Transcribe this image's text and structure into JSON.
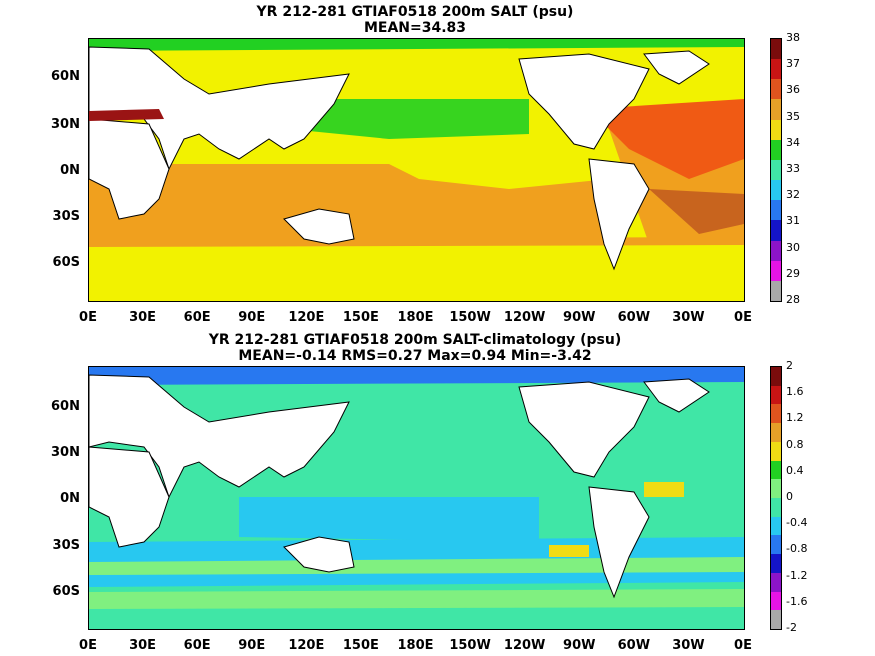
{
  "panels": [
    {
      "title1": "YR 212-281 GTIAF0518 200m SALT (psu)",
      "title2": "MEAN=34.83",
      "colorbar": {
        "labels": [
          "38",
          "37",
          "36",
          "35",
          "34",
          "33",
          "32",
          "31",
          "30",
          "29",
          "28"
        ],
        "colors": [
          "#7a0c0c",
          "#c81414",
          "#e0541e",
          "#e6a028",
          "#f0dc14",
          "#22d022",
          "#40e6a6",
          "#28c8f0",
          "#2878f0",
          "#1414c8",
          "#8c14c8",
          "#e614e6",
          "#a8a8a8"
        ]
      },
      "background": "#f2f200",
      "regions": [
        {
          "name": "atlantic-high-salinity",
          "color": "#f05a14"
        },
        {
          "name": "indian-ocean-band",
          "color": "#f0a01e"
        },
        {
          "name": "pacific-south-band",
          "color": "#f0a01e"
        },
        {
          "name": "north-pacific-fresh",
          "color": "#22d022"
        },
        {
          "name": "arctic-fresh",
          "color": "#22d022"
        },
        {
          "name": "mediterranean",
          "color": "#9a1414"
        }
      ]
    },
    {
      "title1": "YR 212-281 GTIAF0518 200m SALT-climatology (psu)",
      "title2": "MEAN=-0.14   RMS=0.27   Max=0.94   Min=-3.42",
      "colorbar": {
        "labels": [
          "2",
          "1.6",
          "1.2",
          "0.8",
          "0.4",
          "0",
          "-0.4",
          "-0.8",
          "-1.2",
          "-1.6",
          "-2"
        ],
        "colors": [
          "#7a0c0c",
          "#c81414",
          "#e0541e",
          "#e6a028",
          "#f0dc14",
          "#22d022",
          "#80f080",
          "#40e6a6",
          "#28c8f0",
          "#2878f0",
          "#1414c8",
          "#8c14c8",
          "#e614e6",
          "#a8a8a8"
        ]
      },
      "background": "#40e6a6",
      "regions": [
        {
          "name": "southern-ocean-band",
          "color": "#28c8f0"
        },
        {
          "name": "pacific-tropical",
          "color": "#28c8f0"
        },
        {
          "name": "arctic",
          "color": "#2878f0"
        },
        {
          "name": "positive-anomaly-atlantic",
          "color": "#f0dc14"
        },
        {
          "name": "green-band",
          "color": "#80f080"
        }
      ]
    }
  ],
  "axes": {
    "x_ticks": [
      "0E",
      "30E",
      "60E",
      "90E",
      "120E",
      "150E",
      "180E",
      "150W",
      "120W",
      "90W",
      "60W",
      "30W",
      "0E"
    ],
    "y_ticks": [
      "60N",
      "30N",
      "0N",
      "30S",
      "60S"
    ]
  }
}
